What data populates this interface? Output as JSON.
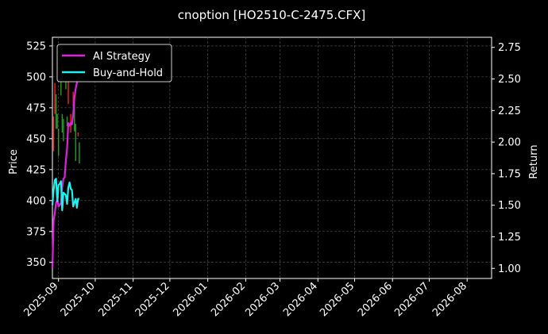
{
  "chart_data": {
    "type": "line",
    "title": "cnoption [HO2510-C-2475.CFX]",
    "ylabel_left": "Price",
    "ylabel_right": "Return",
    "x_ticks": [
      "2025-09",
      "2025-10",
      "2025-11",
      "2025-12",
      "2026-01",
      "2026-02",
      "2026-03",
      "2026-04",
      "2026-05",
      "2026-06",
      "2026-07",
      "2026-08"
    ],
    "y_left_ticks": [
      350,
      375,
      400,
      425,
      450,
      475,
      500,
      525
    ],
    "y_right_ticks": [
      "1.00",
      "1.25",
      "1.50",
      "1.75",
      "2.00",
      "2.25",
      "2.50",
      "2.75"
    ],
    "y_left_range": [
      337,
      532
    ],
    "y_right_range": [
      0.92,
      2.83
    ],
    "x_range": [
      "2025-08-27",
      "2026-08-21"
    ],
    "grid": true,
    "legend_position": "top-left",
    "series": [
      {
        "name": "AI Strategy",
        "color": "#e020e0",
        "axis": "right",
        "points": [
          [
            "2025-08-27",
            1.0
          ],
          [
            "2025-08-28",
            1.38
          ],
          [
            "2025-08-29",
            1.44
          ],
          [
            "2025-08-30",
            1.52
          ],
          [
            "2025-08-31",
            1.54
          ],
          [
            "2025-09-01",
            1.49
          ],
          [
            "2025-09-02",
            1.5
          ],
          [
            "2025-09-03",
            1.52
          ],
          [
            "2025-09-04",
            1.64
          ],
          [
            "2025-09-05",
            1.71
          ],
          [
            "2025-09-06",
            1.72
          ],
          [
            "2025-09-07",
            1.85
          ],
          [
            "2025-09-08",
            1.95
          ],
          [
            "2025-09-09",
            2.15
          ],
          [
            "2025-09-10",
            2.13
          ],
          [
            "2025-09-11",
            2.15
          ],
          [
            "2025-09-12",
            2.14
          ],
          [
            "2025-09-13",
            2.22
          ],
          [
            "2025-09-14",
            2.35
          ],
          [
            "2025-09-15",
            2.42
          ],
          [
            "2025-09-16",
            2.47
          ],
          [
            "2025-09-17",
            2.5
          ],
          [
            "2025-09-18",
            2.52
          ]
        ]
      },
      {
        "name": "Buy-and-Hold",
        "color": "#20f0f0",
        "axis": "right",
        "points": [
          [
            "2025-08-27",
            1.5
          ],
          [
            "2025-08-28",
            1.62
          ],
          [
            "2025-08-29",
            1.7
          ],
          [
            "2025-08-30",
            1.71
          ],
          [
            "2025-08-31",
            1.53
          ],
          [
            "2025-09-01",
            1.66
          ],
          [
            "2025-09-02",
            1.67
          ],
          [
            "2025-09-03",
            1.69
          ],
          [
            "2025-09-04",
            1.46
          ],
          [
            "2025-09-05",
            1.6
          ],
          [
            "2025-09-06",
            1.59
          ],
          [
            "2025-09-07",
            1.58
          ],
          [
            "2025-09-08",
            1.51
          ],
          [
            "2025-09-09",
            1.64
          ],
          [
            "2025-09-10",
            1.68
          ],
          [
            "2025-09-11",
            1.63
          ],
          [
            "2025-09-12",
            1.62
          ],
          [
            "2025-09-13",
            1.49
          ],
          [
            "2025-09-14",
            1.52
          ],
          [
            "2025-09-15",
            1.55
          ],
          [
            "2025-09-16",
            1.48
          ],
          [
            "2025-09-17",
            1.55
          ],
          [
            "2025-09-18",
            1.55
          ]
        ]
      }
    ],
    "price_bars": [
      [
        "2025-08-28",
        468,
        440,
        "#ff2020"
      ],
      [
        "2025-08-29",
        495,
        470,
        "#ff2020"
      ],
      [
        "2025-08-30",
        486,
        458,
        "#20a020"
      ],
      [
        "2025-08-31",
        470,
        458,
        "#20a020"
      ],
      [
        "2025-09-01",
        458,
        436,
        "#20a020"
      ],
      [
        "2025-09-03",
        497,
        485,
        "#20a020"
      ],
      [
        "2025-09-04",
        470,
        455,
        "#20a020"
      ],
      [
        "2025-09-05",
        466,
        448,
        "#20a020"
      ],
      [
        "2025-09-07",
        502,
        490,
        "#20a020"
      ],
      [
        "2025-09-08",
        468,
        460,
        "#20a020"
      ],
      [
        "2025-09-09",
        502,
        478,
        "#ff2020"
      ],
      [
        "2025-09-11",
        470,
        455,
        "#ff2020"
      ],
      [
        "2025-09-13",
        488,
        476,
        "#ff2020"
      ],
      [
        "2025-09-14",
        480,
        456,
        "#20a020"
      ],
      [
        "2025-09-15",
        462,
        432,
        "#20a020"
      ],
      [
        "2025-09-17",
        455,
        452,
        "#ff2020"
      ],
      [
        "2025-09-18",
        447,
        430,
        "#20a020"
      ]
    ]
  }
}
